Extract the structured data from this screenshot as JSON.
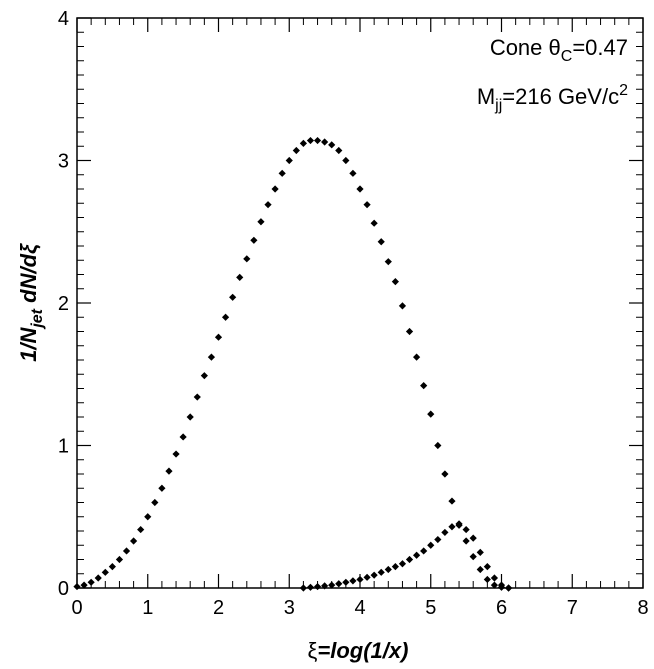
{
  "chart_data": {
    "type": "scatter",
    "xlim": [
      0,
      8
    ],
    "ylim": [
      0,
      4
    ],
    "x_ticks": [
      "0",
      "1",
      "2",
      "3",
      "4",
      "5",
      "6",
      "7",
      "8"
    ],
    "y_ticks": [
      "0",
      "1",
      "2",
      "3",
      "4"
    ],
    "xlabel": {
      "text": "=log(1/x)",
      "symbol": "ξ"
    },
    "ylabel": {
      "pre": "1/N",
      "sub": "jet",
      "post": " dN/dξ"
    },
    "annotations": [
      {
        "parts": [
          "Cone θ",
          "C",
          "=0.47"
        ]
      },
      {
        "parts": [
          "M",
          "jj",
          "=216 GeV/c",
          "2"
        ]
      }
    ],
    "marker_color": "#000000",
    "series": [
      {
        "x": [
          0.0,
          0.1,
          0.2,
          0.3,
          0.4,
          0.5,
          0.6,
          0.7,
          0.8,
          0.9,
          1.0,
          1.1,
          1.2,
          1.3,
          1.4,
          1.5,
          1.6,
          1.7,
          1.8,
          1.9,
          2.0,
          2.1,
          2.2,
          2.3,
          2.4,
          2.5,
          2.6,
          2.7,
          2.8,
          2.9,
          3.0,
          3.1,
          3.2,
          3.3,
          3.4,
          3.5,
          3.6,
          3.7,
          3.8,
          3.9,
          4.0,
          4.1,
          4.2,
          4.3,
          4.4,
          4.5,
          4.6,
          4.7,
          4.8,
          4.9,
          5.0,
          5.1,
          5.2,
          5.3,
          5.4,
          5.5,
          5.6,
          5.7,
          5.8,
          5.9,
          6.0,
          6.1
        ],
        "y": [
          0.01,
          0.02,
          0.04,
          0.07,
          0.11,
          0.15,
          0.2,
          0.26,
          0.33,
          0.41,
          0.5,
          0.6,
          0.7,
          0.82,
          0.94,
          1.06,
          1.2,
          1.34,
          1.49,
          1.62,
          1.76,
          1.9,
          2.04,
          2.18,
          2.31,
          2.44,
          2.57,
          2.69,
          2.8,
          2.91,
          3.0,
          3.07,
          3.12,
          3.14,
          3.14,
          3.13,
          3.11,
          3.07,
          3.0,
          2.91,
          2.8,
          2.69,
          2.56,
          2.43,
          2.29,
          2.15,
          1.98,
          1.8,
          1.62,
          1.42,
          1.22,
          1.0,
          0.8,
          0.61,
          0.45,
          0.33,
          0.22,
          0.13,
          0.06,
          0.02,
          0.005,
          0.0
        ]
      },
      {
        "x": [
          3.2,
          3.3,
          3.4,
          3.5,
          3.6,
          3.7,
          3.8,
          3.9,
          4.0,
          4.1,
          4.2,
          4.3,
          4.4,
          4.5,
          4.6,
          4.7,
          4.8,
          4.9,
          5.0,
          5.1,
          5.2,
          5.3,
          5.4,
          5.5,
          5.6,
          5.7,
          5.8,
          5.9,
          6.0,
          6.1
        ],
        "y": [
          0.0,
          0.005,
          0.01,
          0.015,
          0.02,
          0.03,
          0.04,
          0.05,
          0.06,
          0.075,
          0.09,
          0.11,
          0.13,
          0.15,
          0.17,
          0.2,
          0.23,
          0.26,
          0.3,
          0.34,
          0.39,
          0.43,
          0.44,
          0.41,
          0.35,
          0.25,
          0.15,
          0.07,
          0.02,
          0.0
        ]
      }
    ]
  }
}
